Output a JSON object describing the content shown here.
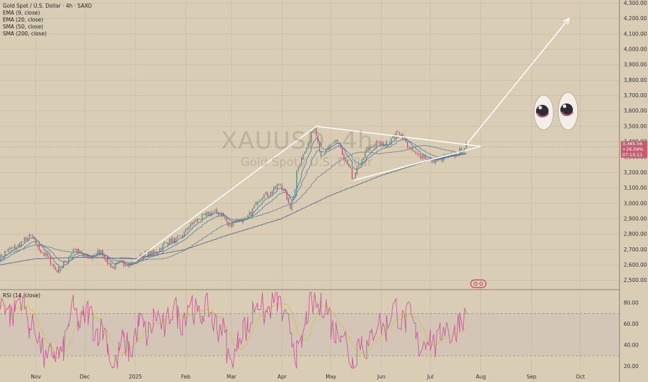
{
  "legend": {
    "title": "Gold Spot / U.S. Dollar · 4h · SAXO",
    "indicators": [
      "EMA (9, close)",
      "EMA (20, close)",
      "SMA (50, close)",
      "SMA (200, close)"
    ]
  },
  "watermark": {
    "symbol": "XAUUSD, 4h",
    "name": "Gold Spot / U.S. Dollar"
  },
  "price_box": [
    "3,365.56",
    "+26.09%",
    "07:15:11"
  ],
  "rsi_label": "RSI (14, close)",
  "colors": {
    "background": "#d9cdb5",
    "price_up": "#5b8f7b",
    "price_down": "#c94f6d",
    "ema9": "#3a6ea5",
    "sma200": "#5a6b8c",
    "rsi": "#d0579a",
    "rsi_ma": "#c9c73a",
    "drawing": "#ffffff",
    "price_box": "#c85a72"
  },
  "chart_data": [
    {
      "type": "line",
      "title": "Gold Spot / U.S. Dollar · 4h · SAXO",
      "ylim": [
        2440,
        4320
      ],
      "y_ticks": [
        "2,500.00",
        "2,600.00",
        "2,700.00",
        "2,800.00",
        "2,900.00",
        "3,000.00",
        "3,100.00",
        "3,200.00",
        "3,300.00",
        "3,400.00",
        "3,500.00",
        "3,600.00",
        "3,700.00",
        "3,800.00",
        "3,900.00",
        "4,000.00",
        "4,100.00",
        "4,200.00",
        "4,300.00"
      ],
      "y_tick_values": [
        2500,
        2600,
        2700,
        2800,
        2900,
        3000,
        3100,
        3200,
        3300,
        3400,
        3500,
        3600,
        3700,
        3800,
        3900,
        4000,
        4100,
        4200,
        4300
      ],
      "x_ticks": [
        "Nov",
        "Dec",
        "2025",
        "Feb",
        "Mar",
        "Apr",
        "May",
        "Jun",
        "Jul",
        "Aug",
        "Sep",
        "Oct"
      ],
      "x_tick_dates": [
        "2024-11-01",
        "2024-12-01",
        "2025-01-01",
        "2025-02-01",
        "2025-03-01",
        "2025-04-01",
        "2025-05-01",
        "2025-06-01",
        "2025-07-01",
        "2025-08-01",
        "2025-09-01",
        "2025-10-01"
      ],
      "x_range": [
        "2024-10-10",
        "2025-10-25"
      ],
      "series": [
        {
          "name": "",
          "x": [
            "2024-10-10",
            "2024-10-20",
            "2024-10-30",
            "2024-11-05",
            "2024-11-14",
            "2024-11-25",
            "2024-12-05",
            "2024-12-12",
            "2024-12-19",
            "2024-12-31",
            "2025-01-15",
            "2025-01-31",
            "2025-02-11",
            "2025-02-24",
            "2025-02-28",
            "2025-03-10",
            "2025-03-20",
            "2025-03-31",
            "2025-04-07",
            "2025-04-11",
            "2025-04-22",
            "2025-04-25",
            "2025-05-06",
            "2025-05-15",
            "2025-05-23",
            "2025-06-05",
            "2025-06-13",
            "2025-06-24",
            "2025-07-09",
            "2025-07-23"
          ],
          "values": [
            2640,
            2730,
            2780,
            2700,
            2560,
            2690,
            2650,
            2680,
            2590,
            2620,
            2700,
            2800,
            2920,
            2940,
            2860,
            2900,
            3040,
            3120,
            2970,
            3220,
            3500,
            3300,
            3410,
            3150,
            3350,
            3400,
            3450,
            3300,
            3280,
            3365
          ]
        },
        {
          "name": "",
          "x": [
            "2024-10-10",
            "2024-11-01",
            "2024-12-01",
            "2025-01-01",
            "2025-02-01",
            "2025-03-01",
            "2025-04-01",
            "2025-05-01",
            "2025-06-01",
            "2025-07-01",
            "2025-07-23"
          ],
          "values": [
            2600,
            2640,
            2650,
            2640,
            2700,
            2800,
            2900,
            3050,
            3180,
            3280,
            3320
          ]
        }
      ],
      "annotations": {
        "triangle": [
          [
            "2024-12-31",
            2620
          ],
          [
            "2025-04-22",
            3500
          ],
          [
            "2025-08-01",
            3370
          ],
          [
            "2025-05-15",
            3150
          ]
        ],
        "arrow": [
          [
            "2025-07-23",
            3380
          ],
          [
            "2025-09-24",
            4200
          ]
        ],
        "eyes": "👀"
      }
    },
    {
      "type": "line",
      "title": "RSI (14, close)",
      "ylim": [
        15,
        92
      ],
      "y_ticks": [
        "20.00",
        "40.00",
        "60.00",
        "80.00"
      ],
      "y_tick_values": [
        20,
        40,
        60,
        80
      ],
      "levels": [
        30,
        70
      ],
      "series": [
        {
          "name": "",
          "x": [
            "2024-10-10",
            "2024-10-25",
            "2024-11-05",
            "2024-11-14",
            "2024-11-25",
            "2024-12-10",
            "2024-12-19",
            "2025-01-05",
            "2025-01-20",
            "2025-02-05",
            "2025-02-20",
            "2025-03-01",
            "2025-03-15",
            "2025-04-01",
            "2025-04-10",
            "2025-04-22",
            "2025-05-06",
            "2025-05-15",
            "2025-06-05",
            "2025-06-13",
            "2025-06-28",
            "2025-07-09",
            "2025-07-23"
          ],
          "values": [
            72,
            80,
            35,
            25,
            70,
            60,
            25,
            55,
            65,
            75,
            68,
            25,
            75,
            80,
            30,
            86,
            55,
            30,
            65,
            72,
            40,
            50,
            63
          ]
        }
      ]
    }
  ]
}
